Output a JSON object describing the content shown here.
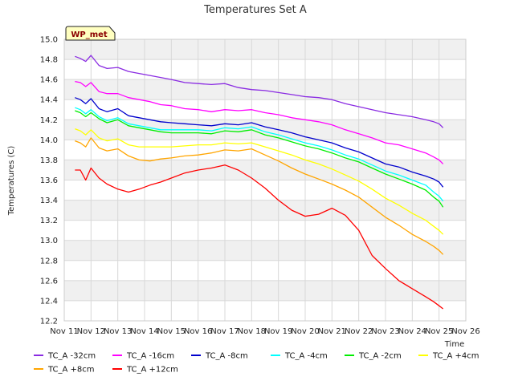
{
  "chart_data": {
    "type": "line",
    "title": "Temperatures Set A",
    "xlabel": "Time",
    "ylabel": "Temperatures (C)",
    "badge": "WP_met",
    "ylim": [
      12.2,
      15.0
    ],
    "yticks": [
      "12.2",
      "12.4",
      "12.6",
      "12.8",
      "13.0",
      "13.2",
      "13.4",
      "13.6",
      "13.8",
      "14.0",
      "14.2",
      "14.4",
      "14.6",
      "14.8",
      "15.0"
    ],
    "xlim": [
      11,
      26
    ],
    "xticks": [
      "Nov 11",
      "Nov 12",
      "Nov 13",
      "Nov 14",
      "Nov 15",
      "Nov 16",
      "Nov 17",
      "Nov 18",
      "Nov 19",
      "Nov 20",
      "Nov 21",
      "Nov 22",
      "Nov 23",
      "Nov 24",
      "Nov 25",
      "Nov 26"
    ],
    "grid": true,
    "legend_position": "bottom",
    "x": [
      11.4,
      11.6,
      11.8,
      12.0,
      12.3,
      12.6,
      13.0,
      13.4,
      13.8,
      14.2,
      14.6,
      15.0,
      15.5,
      16.0,
      16.5,
      17.0,
      17.5,
      18.0,
      18.5,
      19.0,
      19.5,
      20.0,
      20.5,
      21.0,
      21.5,
      22.0,
      22.5,
      23.0,
      23.5,
      24.0,
      24.5,
      24.8,
      25.0,
      25.15
    ],
    "series": [
      {
        "name": "TC_A -32cm",
        "color": "#8a2be2",
        "values": [
          14.83,
          14.81,
          14.78,
          14.84,
          14.74,
          14.71,
          14.72,
          14.68,
          14.66,
          14.64,
          14.62,
          14.6,
          14.57,
          14.56,
          14.55,
          14.56,
          14.52,
          14.5,
          14.49,
          14.47,
          14.45,
          14.43,
          14.42,
          14.4,
          14.36,
          14.33,
          14.3,
          14.27,
          14.25,
          14.23,
          14.2,
          14.18,
          14.16,
          14.12
        ]
      },
      {
        "name": "TC_A -16cm",
        "color": "#ff00ff",
        "values": [
          14.58,
          14.57,
          14.53,
          14.57,
          14.48,
          14.46,
          14.46,
          14.42,
          14.4,
          14.38,
          14.35,
          14.34,
          14.31,
          14.3,
          14.28,
          14.3,
          14.29,
          14.3,
          14.27,
          14.25,
          14.22,
          14.2,
          14.18,
          14.15,
          14.1,
          14.06,
          14.02,
          13.97,
          13.95,
          13.91,
          13.87,
          13.83,
          13.8,
          13.76
        ]
      },
      {
        "name": "TC_A -8cm",
        "color": "#0000cd",
        "values": [
          14.42,
          14.4,
          14.36,
          14.41,
          14.31,
          14.28,
          14.31,
          14.24,
          14.22,
          14.2,
          14.18,
          14.17,
          14.16,
          14.15,
          14.14,
          14.16,
          14.15,
          14.17,
          14.13,
          14.1,
          14.07,
          14.03,
          14.0,
          13.97,
          13.92,
          13.88,
          13.82,
          13.76,
          13.73,
          13.68,
          13.64,
          13.61,
          13.58,
          13.53
        ]
      },
      {
        "name": "TC_A -4cm",
        "color": "#00ffff",
        "values": [
          14.32,
          14.3,
          14.26,
          14.3,
          14.23,
          14.19,
          14.22,
          14.16,
          14.14,
          14.12,
          14.1,
          14.1,
          14.1,
          14.1,
          14.09,
          14.12,
          14.11,
          14.13,
          14.08,
          14.05,
          14.01,
          13.97,
          13.94,
          13.9,
          13.85,
          13.81,
          13.75,
          13.69,
          13.65,
          13.6,
          13.55,
          13.48,
          13.44,
          13.39
        ]
      },
      {
        "name": "TC_A -2cm",
        "color": "#00ee00",
        "values": [
          14.29,
          14.27,
          14.23,
          14.27,
          14.21,
          14.17,
          14.2,
          14.14,
          14.12,
          14.1,
          14.08,
          14.07,
          14.07,
          14.07,
          14.06,
          14.09,
          14.08,
          14.1,
          14.05,
          14.02,
          13.98,
          13.94,
          13.91,
          13.87,
          13.82,
          13.78,
          13.72,
          13.66,
          13.61,
          13.56,
          13.5,
          13.43,
          13.39,
          13.33
        ]
      },
      {
        "name": "TC_A +4cm",
        "color": "#ffff00",
        "values": [
          14.11,
          14.09,
          14.05,
          14.1,
          14.02,
          13.99,
          14.01,
          13.95,
          13.93,
          13.93,
          13.93,
          13.93,
          13.94,
          13.95,
          13.95,
          13.97,
          13.96,
          13.97,
          13.93,
          13.89,
          13.85,
          13.8,
          13.76,
          13.71,
          13.65,
          13.59,
          13.51,
          13.42,
          13.35,
          13.27,
          13.2,
          13.14,
          13.1,
          13.06
        ]
      },
      {
        "name": "TC_A +8cm",
        "color": "#ffa500",
        "values": [
          13.99,
          13.97,
          13.93,
          14.02,
          13.92,
          13.89,
          13.91,
          13.84,
          13.8,
          13.79,
          13.81,
          13.82,
          13.84,
          13.85,
          13.87,
          13.9,
          13.89,
          13.91,
          13.85,
          13.79,
          13.72,
          13.66,
          13.61,
          13.56,
          13.5,
          13.43,
          13.33,
          13.23,
          13.15,
          13.06,
          12.99,
          12.94,
          12.9,
          12.86
        ]
      },
      {
        "name": "TC_A +12cm",
        "color": "#ff0000",
        "values": [
          13.7,
          13.7,
          13.6,
          13.72,
          13.62,
          13.56,
          13.51,
          13.48,
          13.51,
          13.55,
          13.58,
          13.62,
          13.67,
          13.7,
          13.72,
          13.75,
          13.7,
          13.62,
          13.52,
          13.4,
          13.3,
          13.24,
          13.26,
          13.32,
          13.25,
          13.1,
          12.85,
          12.72,
          12.6,
          12.52,
          12.44,
          12.39,
          12.35,
          12.32
        ]
      }
    ]
  }
}
